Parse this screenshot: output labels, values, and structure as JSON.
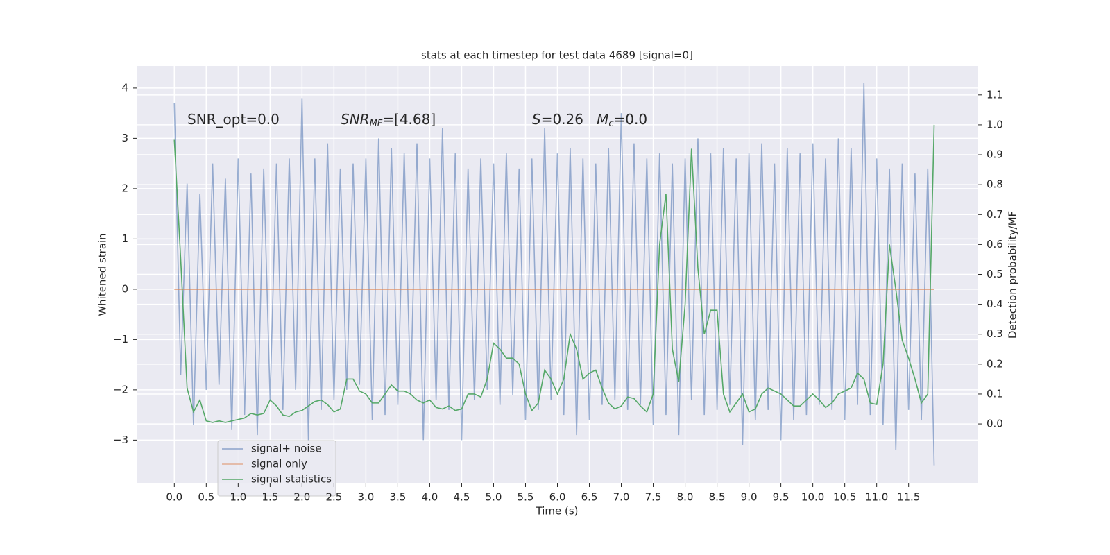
{
  "chart_data": {
    "type": "line",
    "title": "stats at each timestep for test data 4689 [signal=0]",
    "xlabel": "Time (s)",
    "ylabel": "Whitened strain",
    "y2label": "Detection probability/MF",
    "annotations": [
      [
        "SNR_opt=0.0"
      ],
      [
        "SNR",
        "MF",
        "=[4.68]"
      ],
      [
        "S",
        "=0.26   ",
        "M",
        "c",
        "=0.0"
      ]
    ],
    "x": [
      0,
      0.1,
      0.2,
      0.3,
      0.4,
      0.5,
      0.6,
      0.7,
      0.8,
      0.9,
      1,
      1.1,
      1.2,
      1.3,
      1.4,
      1.5,
      1.6,
      1.7,
      1.8,
      1.9,
      2,
      2.1,
      2.2,
      2.3,
      2.4,
      2.5,
      2.6,
      2.7,
      2.8,
      2.9,
      3,
      3.1,
      3.2,
      3.3,
      3.4,
      3.5,
      3.6,
      3.7,
      3.8,
      3.9,
      4,
      4.1,
      4.2,
      4.3,
      4.4,
      4.5,
      4.6,
      4.7,
      4.8,
      4.9,
      5,
      5.1,
      5.2,
      5.3,
      5.4,
      5.5,
      5.6,
      5.7,
      5.8,
      5.9,
      6,
      6.1,
      6.2,
      6.3,
      6.4,
      6.5,
      6.6,
      6.7,
      6.8,
      6.9,
      7,
      7.1,
      7.2,
      7.3,
      7.4,
      7.5,
      7.6,
      7.7,
      7.8,
      7.9,
      8,
      8.1,
      8.2,
      8.3,
      8.4,
      8.5,
      8.6,
      8.7,
      8.8,
      8.9,
      9,
      9.1,
      9.2,
      9.3,
      9.4,
      9.5,
      9.6,
      9.7,
      9.8,
      9.9,
      10,
      10.1,
      10.2,
      10.3,
      10.4,
      10.5,
      10.6,
      10.7,
      10.8,
      10.9,
      11,
      11.1,
      11.2,
      11.3,
      11.4,
      11.5,
      11.6,
      11.7,
      11.8,
      11.9
    ],
    "series": [
      {
        "name": "signal+ noise",
        "color": "#4c72b0",
        "values": [
          3.7,
          -1.7,
          2.1,
          -2.7,
          1.9,
          -2.0,
          2.5,
          -1.9,
          2.2,
          -2.8,
          2.6,
          -2.5,
          2.3,
          -2.9,
          2.4,
          -2.2,
          2.5,
          -2.4,
          2.6,
          -2.0,
          3.8,
          -3.0,
          2.6,
          -2.4,
          2.9,
          -2.2,
          2.4,
          -2.0,
          2.5,
          -1.9,
          2.6,
          -2.6,
          3.0,
          -2.5,
          2.8,
          -2.3,
          2.7,
          -2.1,
          2.9,
          -3.0,
          2.6,
          -2.2,
          3.2,
          -2.4,
          2.7,
          -3.0,
          2.4,
          -2.2,
          2.6,
          -2.0,
          2.5,
          -2.3,
          2.7,
          -2.1,
          2.4,
          -2.6,
          2.6,
          -2.4,
          3.2,
          -2.2,
          2.7,
          -2.5,
          2.8,
          -2.9,
          2.6,
          -2.6,
          2.5,
          -2.3,
          2.8,
          -2.2,
          3.5,
          -2.4,
          2.9,
          -2.3,
          2.6,
          -2.7,
          2.7,
          -2.5,
          2.5,
          -2.9,
          2.6,
          -2.2,
          3.0,
          -2.5,
          2.7,
          -2.4,
          2.8,
          -2.3,
          2.6,
          -3.1,
          2.7,
          -2.6,
          2.9,
          -2.4,
          2.5,
          -3.0,
          2.8,
          -2.6,
          2.7,
          -2.5,
          2.9,
          -2.3,
          2.6,
          -2.4,
          3.0,
          -2.6,
          2.8,
          -2.3,
          4.1,
          -2.5,
          2.6,
          -2.7,
          2.4,
          -3.2,
          2.5,
          -2.4,
          2.3,
          -2.6,
          2.4,
          -3.5
        ]
      },
      {
        "name": "signal only",
        "color": "#dd8452",
        "values": [
          0,
          0,
          0,
          0,
          0,
          0,
          0,
          0,
          0,
          0,
          0,
          0,
          0,
          0,
          0,
          0,
          0,
          0,
          0,
          0,
          0,
          0,
          0,
          0,
          0,
          0,
          0,
          0,
          0,
          0,
          0,
          0,
          0,
          0,
          0,
          0,
          0,
          0,
          0,
          0,
          0,
          0,
          0,
          0,
          0,
          0,
          0,
          0,
          0,
          0,
          0,
          0,
          0,
          0,
          0,
          0,
          0,
          0,
          0,
          0,
          0,
          0,
          0,
          0,
          0,
          0,
          0,
          0,
          0,
          0,
          0,
          0,
          0,
          0,
          0,
          0,
          0,
          0,
          0,
          0,
          0,
          0,
          0,
          0,
          0,
          0,
          0,
          0,
          0,
          0,
          0,
          0,
          0,
          0,
          0,
          0,
          0,
          0,
          0,
          0,
          0,
          0,
          0,
          0,
          0,
          0,
          0,
          0,
          0,
          0,
          0,
          0,
          0,
          0,
          0,
          0,
          0,
          0,
          0,
          0
        ]
      },
      {
        "name": "signal statistics",
        "color": "#55a868",
        "axis": "y2",
        "values": [
          0.95,
          0.55,
          0.12,
          0.04,
          0.08,
          0.01,
          0.005,
          0.01,
          0.005,
          0.01,
          0.015,
          0.02,
          0.035,
          0.03,
          0.035,
          0.08,
          0.06,
          0.03,
          0.025,
          0.04,
          0.045,
          0.06,
          0.075,
          0.08,
          0.065,
          0.04,
          0.05,
          0.15,
          0.15,
          0.11,
          0.1,
          0.07,
          0.07,
          0.1,
          0.13,
          0.11,
          0.11,
          0.1,
          0.08,
          0.07,
          0.08,
          0.055,
          0.05,
          0.06,
          0.045,
          0.05,
          0.1,
          0.1,
          0.09,
          0.15,
          0.27,
          0.25,
          0.22,
          0.22,
          0.2,
          0.1,
          0.045,
          0.07,
          0.18,
          0.15,
          0.1,
          0.15,
          0.3,
          0.25,
          0.15,
          0.17,
          0.18,
          0.12,
          0.07,
          0.05,
          0.06,
          0.09,
          0.085,
          0.06,
          0.04,
          0.1,
          0.6,
          0.77,
          0.25,
          0.14,
          0.4,
          0.92,
          0.52,
          0.3,
          0.38,
          0.38,
          0.1,
          0.04,
          0.07,
          0.1,
          0.04,
          0.05,
          0.1,
          0.12,
          0.11,
          0.1,
          0.08,
          0.06,
          0.06,
          0.08,
          0.1,
          0.08,
          0.055,
          0.07,
          0.1,
          0.11,
          0.12,
          0.17,
          0.15,
          0.07,
          0.065,
          0.2,
          0.6,
          0.45,
          0.28,
          0.22,
          0.15,
          0.07,
          0.1,
          1.0
        ]
      }
    ],
    "xlim": [
      -0.59,
      12.59
    ],
    "ylim": [
      -3.85,
      4.44
    ],
    "y2lim": [
      -0.197,
      1.197
    ],
    "xticks": [
      {
        "value": 0,
        "label": "0.0"
      },
      {
        "value": 0.5,
        "label": "0.5"
      },
      {
        "value": 1,
        "label": "1.0"
      },
      {
        "value": 1.5,
        "label": "1.5"
      },
      {
        "value": 2,
        "label": "2.0"
      },
      {
        "value": 2.5,
        "label": "2.5"
      },
      {
        "value": 3,
        "label": "3.0"
      },
      {
        "value": 3.5,
        "label": "3.5"
      },
      {
        "value": 4,
        "label": "4.0"
      },
      {
        "value": 4.5,
        "label": "4.5"
      },
      {
        "value": 5,
        "label": "5.0"
      },
      {
        "value": 5.5,
        "label": "5.5"
      },
      {
        "value": 6,
        "label": "6.0"
      },
      {
        "value": 6.5,
        "label": "6.5"
      },
      {
        "value": 7,
        "label": "7.0"
      },
      {
        "value": 7.5,
        "label": "7.5"
      },
      {
        "value": 8,
        "label": "8.0"
      },
      {
        "value": 8.5,
        "label": "8.5"
      },
      {
        "value": 9,
        "label": "9.0"
      },
      {
        "value": 9.5,
        "label": "9.5"
      },
      {
        "value": 10,
        "label": "10.0"
      },
      {
        "value": 10.5,
        "label": "10.5"
      },
      {
        "value": 11,
        "label": "11.0"
      },
      {
        "value": 11.5,
        "label": "11.5"
      }
    ],
    "yticks": [
      {
        "value": -3,
        "label": "−3"
      },
      {
        "value": -2,
        "label": "−2"
      },
      {
        "value": -1,
        "label": "−1"
      },
      0,
      1,
      2,
      3,
      4
    ],
    "y2ticks": [
      {
        "value": 0,
        "label": "0.0"
      },
      {
        "value": 0.1,
        "label": "0.1"
      },
      {
        "value": 0.2,
        "label": "0.2"
      },
      {
        "value": 0.3,
        "label": "0.3"
      },
      {
        "value": 0.4,
        "label": "0.4"
      },
      {
        "value": 0.5,
        "label": "0.5"
      },
      {
        "value": 0.6,
        "label": "0.6"
      },
      {
        "value": 0.7,
        "label": "0.7"
      },
      {
        "value": 0.8,
        "label": "0.8"
      },
      {
        "value": 0.9,
        "label": "0.9"
      },
      {
        "value": 1,
        "label": "1.0"
      },
      {
        "value": 1.1,
        "label": "1.1"
      }
    ],
    "grid": true,
    "legend": "lower left"
  }
}
